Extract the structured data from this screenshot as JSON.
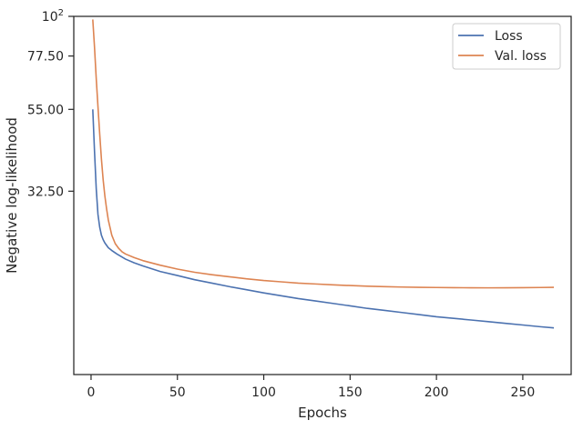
{
  "chart_data": {
    "type": "line",
    "xlabel": "Epochs",
    "ylabel": "Negative log-likelihood",
    "xlim": [
      -10,
      278
    ],
    "ylim": [
      10,
      100
    ],
    "xscale": "linear",
    "yscale": "log",
    "grid": false,
    "legend_position": "top-right",
    "xticks": [
      0,
      50,
      100,
      150,
      200,
      250
    ],
    "xtick_labels": [
      "0",
      "50",
      "100",
      "150",
      "200",
      "250"
    ],
    "yticks": [
      32.5,
      55,
      77.5,
      100
    ],
    "ytick_labels": [
      "32.50",
      "55.00",
      "77.50",
      "10²"
    ],
    "series": [
      {
        "name": "Loss",
        "color": "#4c72b0",
        "x": [
          1,
          2,
          3,
          4,
          5,
          6,
          7,
          8,
          10,
          12,
          15,
          20,
          25,
          30,
          40,
          50,
          60,
          70,
          80,
          90,
          100,
          110,
          120,
          130,
          140,
          150,
          160,
          170,
          180,
          190,
          200,
          210,
          220,
          230,
          240,
          250,
          260,
          268
        ],
        "y": [
          55.0,
          42.0,
          33.0,
          28.0,
          25.8,
          24.5,
          23.8,
          23.3,
          22.6,
          22.2,
          21.7,
          21.0,
          20.5,
          20.1,
          19.4,
          18.9,
          18.4,
          18.0,
          17.6,
          17.25,
          16.9,
          16.6,
          16.3,
          16.05,
          15.8,
          15.55,
          15.3,
          15.1,
          14.9,
          14.7,
          14.5,
          14.35,
          14.2,
          14.05,
          13.9,
          13.75,
          13.6,
          13.5
        ]
      },
      {
        "name": "Val. loss",
        "color": "#dd8452",
        "x": [
          1,
          2,
          3,
          4,
          5,
          6,
          7,
          8,
          9,
          10,
          12,
          14,
          16,
          18,
          20,
          25,
          30,
          40,
          50,
          60,
          70,
          80,
          90,
          100,
          110,
          120,
          130,
          140,
          150,
          160,
          170,
          180,
          190,
          200,
          210,
          220,
          230,
          240,
          250,
          260,
          268
        ],
        "y": [
          98.0,
          82.0,
          67.0,
          56.0,
          47.0,
          40.0,
          35.0,
          31.5,
          29.0,
          27.0,
          24.5,
          23.2,
          22.5,
          22.0,
          21.7,
          21.2,
          20.8,
          20.2,
          19.7,
          19.3,
          19.0,
          18.75,
          18.5,
          18.3,
          18.15,
          18.0,
          17.9,
          17.8,
          17.72,
          17.65,
          17.6,
          17.55,
          17.52,
          17.5,
          17.48,
          17.47,
          17.46,
          17.47,
          17.48,
          17.5,
          17.52
        ]
      }
    ]
  }
}
